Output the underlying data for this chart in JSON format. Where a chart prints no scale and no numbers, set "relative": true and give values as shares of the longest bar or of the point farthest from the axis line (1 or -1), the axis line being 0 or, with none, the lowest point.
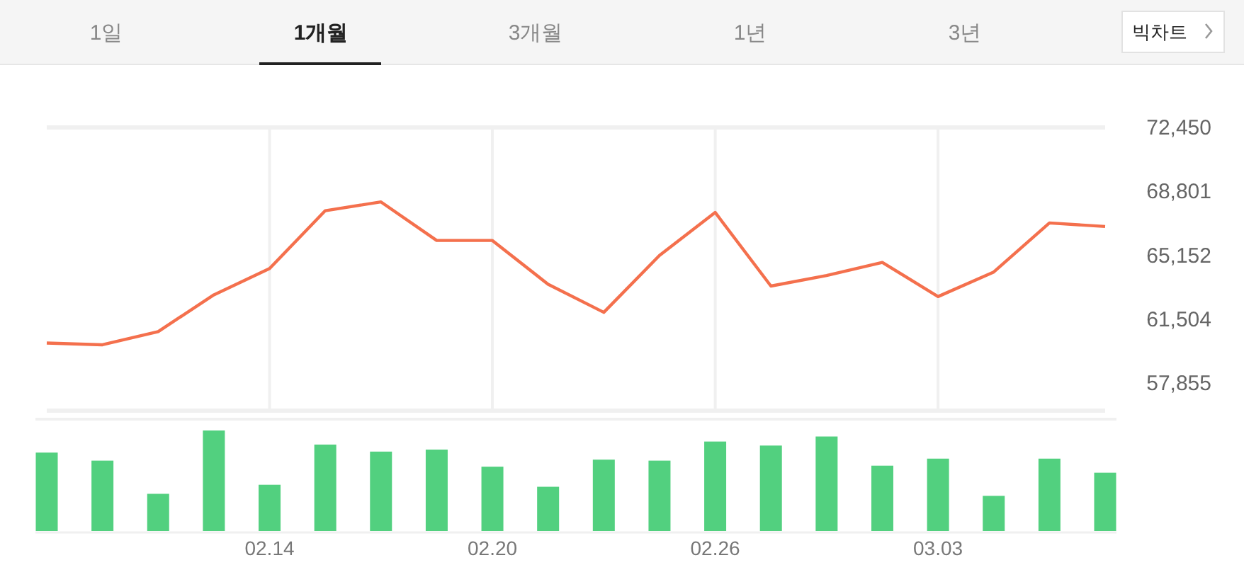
{
  "chart_data": [
    {
      "type": "other",
      "annotations": [
        "1일",
        "1개월",
        "3개월",
        "1년",
        "3년",
        "빅차트"
      ]
    },
    {
      "type": "line",
      "categories": [
        null,
        null,
        null,
        null,
        "02.14",
        null,
        null,
        null,
        "02.20",
        null,
        null,
        null,
        "02.26",
        null,
        null,
        null,
        "03.03",
        null,
        null,
        null
      ],
      "series": [
        {
          "color": "#f4704d",
          "values": [
            60150,
            60050,
            60800,
            62900,
            64400,
            67700,
            68200,
            66000,
            66000,
            63500,
            61900,
            65150,
            67600,
            63400,
            64000,
            64750,
            62800,
            64200,
            67000,
            66800
          ]
        }
      ],
      "ylim": [
        56290,
        72450
      ],
      "yticks": [
        {
          "value": 57855,
          "label": "57,855"
        },
        {
          "value": 61504,
          "label": "61,504"
        },
        {
          "value": 65152,
          "label": "65,152"
        },
        {
          "value": 68801,
          "label": "68,801"
        },
        {
          "value": 72450,
          "label": "72,450"
        }
      ],
      "grid": "x",
      "tick_labels": "y"
    },
    {
      "type": "bar",
      "relative": true,
      "categories": [
        null,
        null,
        null,
        null,
        "02.14",
        null,
        null,
        null,
        "02.20",
        null,
        null,
        null,
        "02.26",
        null,
        null,
        null,
        "03.03",
        null,
        null,
        null
      ],
      "values": [
        0.78,
        0.7,
        0.37,
        1,
        0.46,
        0.86,
        0.79,
        0.81,
        0.64,
        0.44,
        0.71,
        0.7,
        0.89,
        0.85,
        0.94,
        0.65,
        0.72,
        0.35,
        0.72,
        0.58
      ],
      "color": "#52d07f",
      "tick_labels": "x"
    }
  ]
}
